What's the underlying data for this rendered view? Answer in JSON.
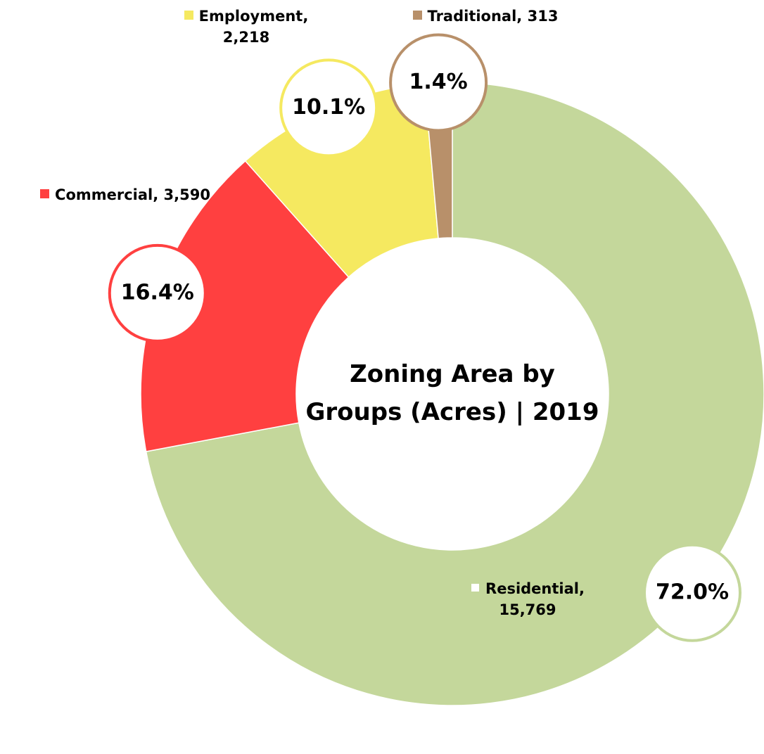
{
  "chart_data": {
    "type": "donut",
    "title": "Zoning Area by Groups (Acres) | 2019",
    "labels": [
      "Residential, 15,769",
      "Commercial, 3,590",
      "Employment, 2,218",
      "Traditional, 313"
    ],
    "values": [
      15769,
      3590,
      2218,
      313
    ],
    "percents": [
      72.0,
      16.4,
      10.1,
      1.4
    ],
    "percent_labels": [
      "72.0%",
      "16.4%",
      "10.1%",
      "1.4%"
    ],
    "colors": [
      "#c4d79b",
      "#ff4040",
      "#f5e960",
      "#b8906a"
    ]
  }
}
